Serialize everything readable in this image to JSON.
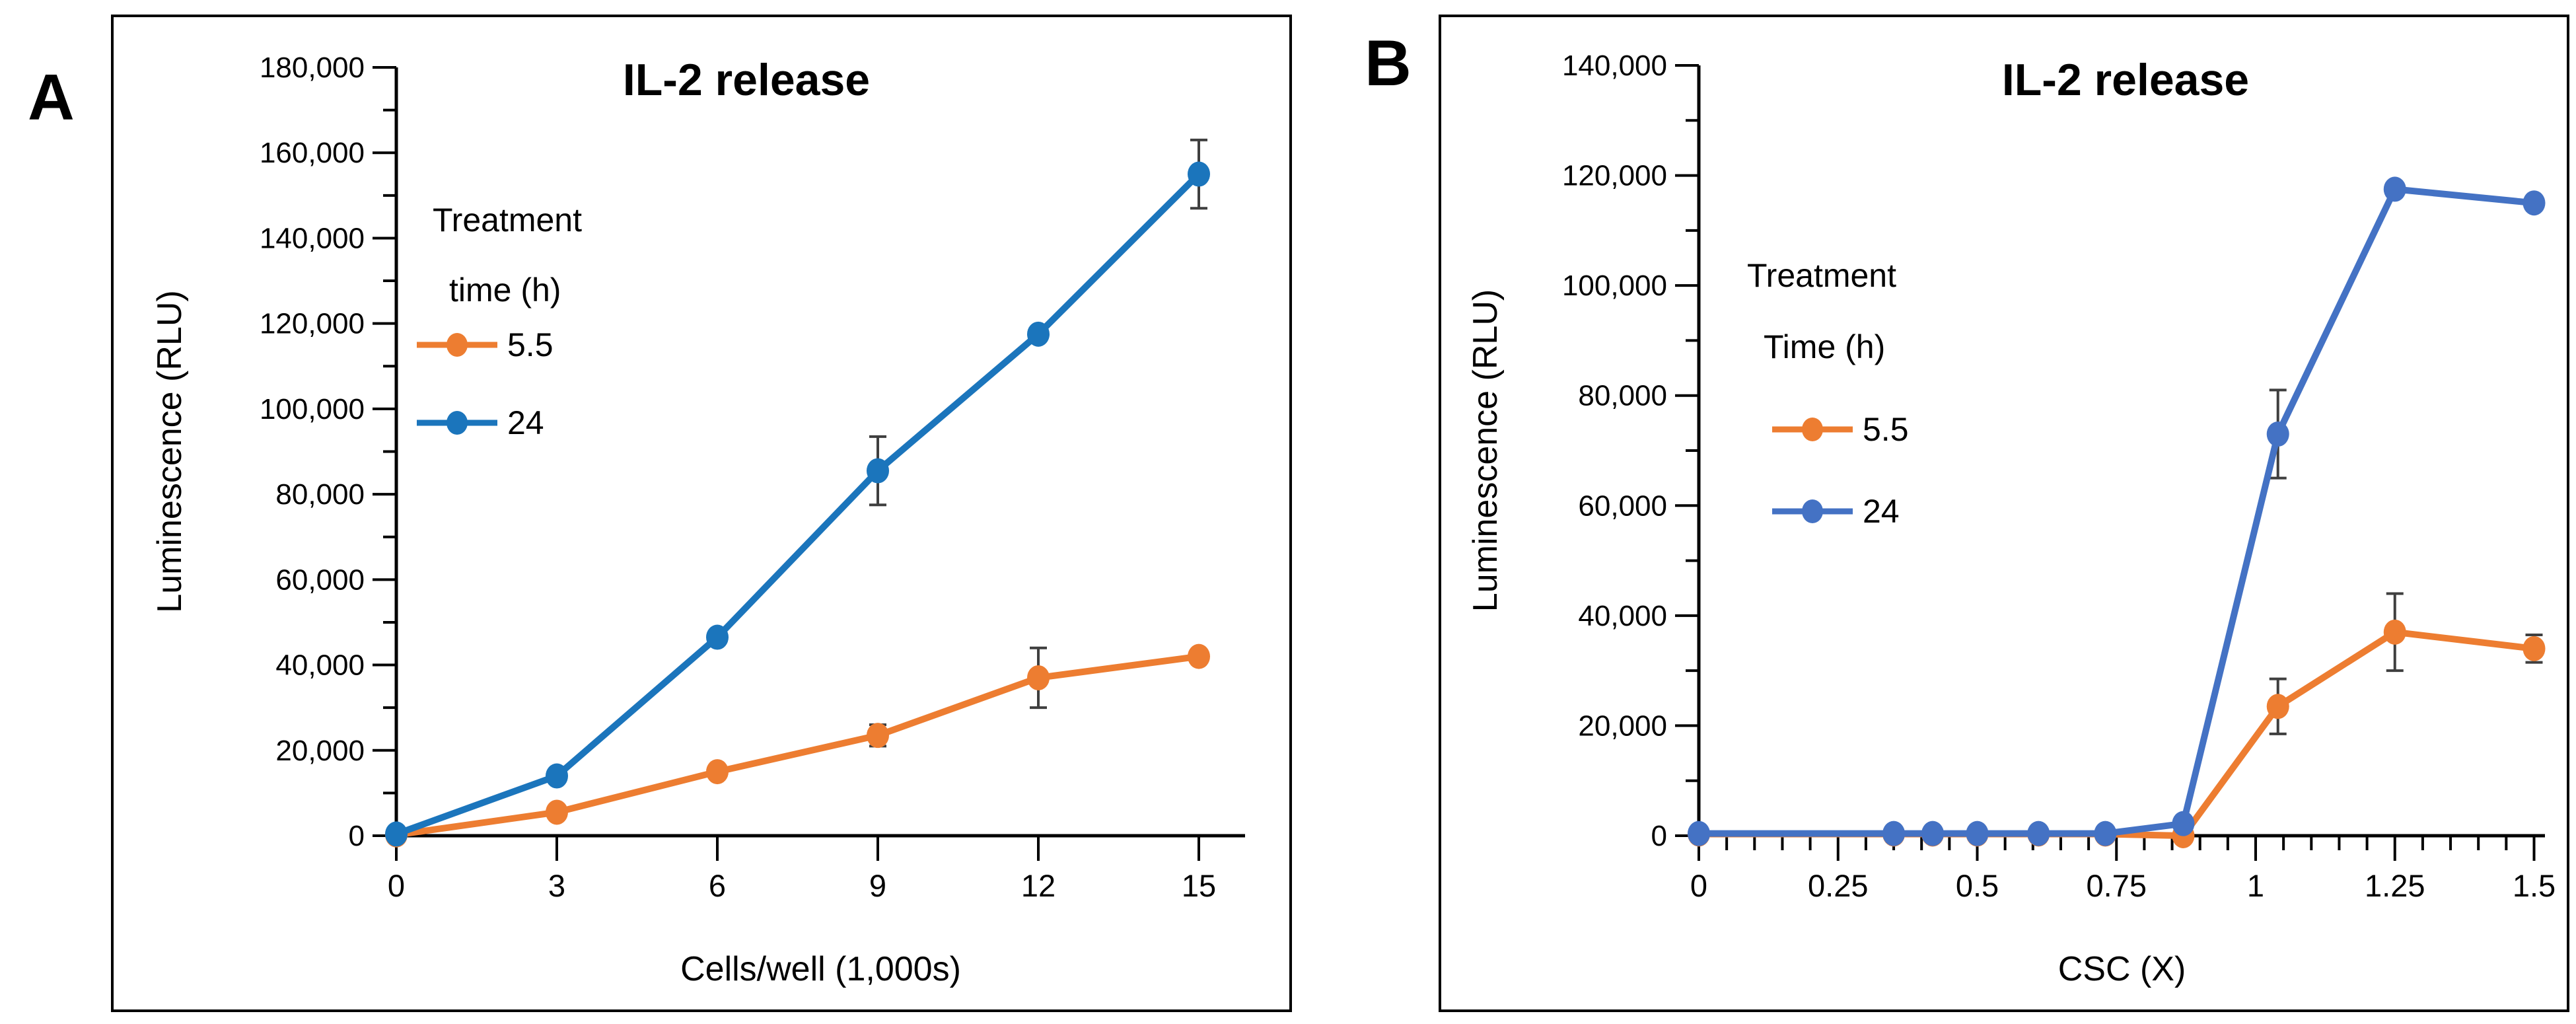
{
  "figure": {
    "background": "#FFFFFF",
    "panel_border_color": "#000000",
    "axis_color": "#000000",
    "text_color": "#000000",
    "error_bar_color": "#3F3F3F"
  },
  "panel_labels": {
    "a": "A",
    "b": "B"
  },
  "chart_data": [
    {
      "id": "A",
      "panel_label": "A",
      "type": "line",
      "title": "IL-2 release",
      "xlabel": "Cells/well (1,000s)",
      "ylabel": "Luminescence (RLU)",
      "xlim": [
        0,
        15.9
      ],
      "ylim": [
        0,
        180000
      ],
      "y_major_step": 20000,
      "y_minor_step": 10000,
      "y_tick_labels": [
        "0",
        "20,000",
        "40,000",
        "60,000",
        "80,000",
        "100,000",
        "120,000",
        "140,000",
        "160,000",
        "180,000"
      ],
      "x_ticks": [
        0,
        3,
        6,
        9,
        12,
        15
      ],
      "x_tick_labels": [
        "0",
        "3",
        "6",
        "9",
        "12",
        "15"
      ],
      "x_minor_step": null,
      "grid": false,
      "legend": {
        "position": "upper-left-inside",
        "title_lines": [
          "Treatment",
          "time (h)"
        ]
      },
      "series": [
        {
          "name": "5.5",
          "color": "#ED7D31",
          "x": [
            0,
            3,
            6,
            9,
            12,
            15
          ],
          "y": [
            200,
            5500,
            15000,
            23500,
            37000,
            42000
          ],
          "err": [
            0,
            0,
            0,
            2500,
            7000,
            0
          ]
        },
        {
          "name": "24",
          "color": "#1B75BC",
          "x": [
            0,
            3,
            6,
            9,
            12,
            15
          ],
          "y": [
            400,
            14000,
            46500,
            85500,
            117500,
            155000
          ],
          "err": [
            0,
            0,
            0,
            8000,
            0,
            8000
          ]
        }
      ]
    },
    {
      "id": "B",
      "panel_label": "B",
      "type": "line",
      "title": "IL-2 release",
      "xlabel": "CSC (X)",
      "ylabel": "Luminescence (RLU)",
      "xlim": [
        0,
        1.52
      ],
      "ylim": [
        0,
        140000
      ],
      "y_major_step": 20000,
      "y_minor_step": 10000,
      "y_tick_labels": [
        "0",
        "20,000",
        "40,000",
        "60,000",
        "80,000",
        "100,000",
        "120,000",
        "140,000"
      ],
      "x_ticks": [
        0,
        0.25,
        0.5,
        0.75,
        1,
        1.25,
        1.5
      ],
      "x_tick_labels": [
        "0",
        "0.25",
        "0.5",
        "0.75",
        "1",
        "1.25",
        "1.5"
      ],
      "x_minor_step": 0.05,
      "grid": false,
      "legend": {
        "position": "center-left-inside",
        "title_lines": [
          "Treatment",
          "Time (h)"
        ]
      },
      "series": [
        {
          "name": "5.5",
          "color": "#ED7D31",
          "x": [
            0,
            0.35,
            0.42,
            0.5,
            0.61,
            0.73,
            0.87,
            1.04,
            1.25,
            1.5
          ],
          "y": [
            300,
            300,
            300,
            300,
            300,
            300,
            0,
            23500,
            37000,
            34000
          ],
          "err": [
            0,
            0,
            0,
            0,
            0,
            0,
            0,
            5000,
            7000,
            2500
          ]
        },
        {
          "name": "24",
          "color": "#4472C4",
          "x": [
            0,
            0.35,
            0.42,
            0.5,
            0.61,
            0.73,
            0.87,
            1.04,
            1.25,
            1.5
          ],
          "y": [
            400,
            400,
            400,
            400,
            400,
            400,
            2200,
            73000,
            117500,
            115000
          ],
          "err": [
            0,
            0,
            0,
            0,
            0,
            0,
            0,
            8000,
            0,
            0
          ]
        }
      ]
    }
  ]
}
